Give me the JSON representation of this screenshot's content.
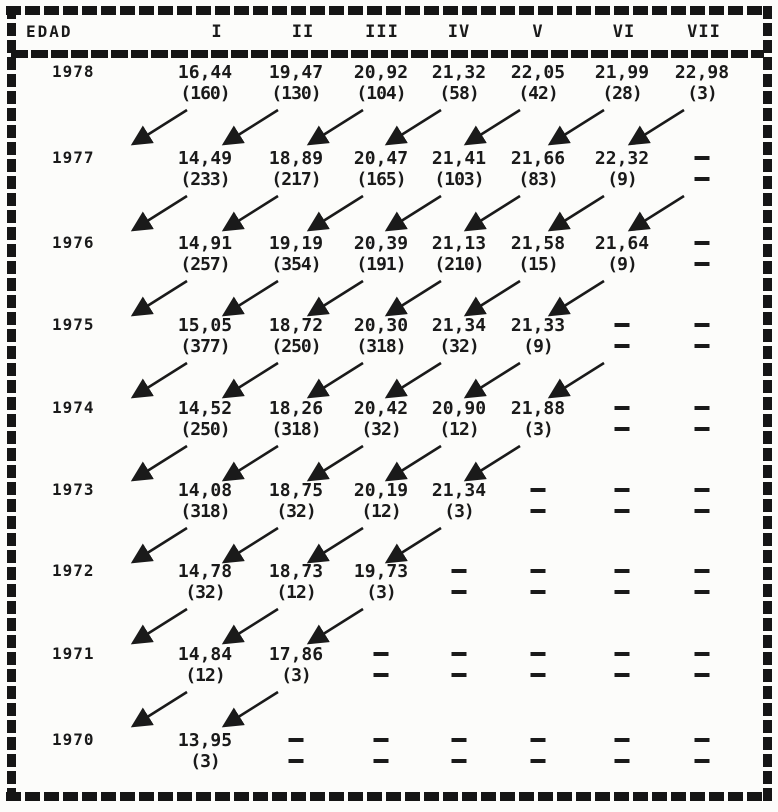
{
  "colors": {
    "ink": "#1a1a1a",
    "paper": "#fcfcfa"
  },
  "table": {
    "corner_label": "EDAD",
    "columns": [
      "I",
      "II",
      "III",
      "IV",
      "V",
      "VI",
      "VII"
    ],
    "empty_marker": "-",
    "rows": [
      {
        "year": "1978",
        "cells": [
          {
            "v": "16,44",
            "n": "(160)"
          },
          {
            "v": "19,47",
            "n": "(130)"
          },
          {
            "v": "20,92",
            "n": "(104)"
          },
          {
            "v": "21,32",
            "n": "(58)"
          },
          {
            "v": "22,05",
            "n": "(42)"
          },
          {
            "v": "21,99",
            "n": "(28)"
          },
          {
            "v": "22,98",
            "n": "(3)"
          }
        ]
      },
      {
        "year": "1977",
        "cells": [
          {
            "v": "14,49",
            "n": "(233)"
          },
          {
            "v": "18,89",
            "n": "(217)"
          },
          {
            "v": "20,47",
            "n": "(165)"
          },
          {
            "v": "21,41",
            "n": "(103)"
          },
          {
            "v": "21,66",
            "n": "(83)"
          },
          {
            "v": "22,32",
            "n": "(9)"
          },
          {
            "v": "-",
            "n": "-"
          }
        ]
      },
      {
        "year": "1976",
        "cells": [
          {
            "v": "14,91",
            "n": "(257)"
          },
          {
            "v": "19,19",
            "n": "(354)"
          },
          {
            "v": "20,39",
            "n": "(191)"
          },
          {
            "v": "21,13",
            "n": "(210)"
          },
          {
            "v": "21,58",
            "n": "(15)"
          },
          {
            "v": "21,64",
            "n": "(9)"
          },
          {
            "v": "-",
            "n": "-"
          }
        ]
      },
      {
        "year": "1975",
        "cells": [
          {
            "v": "15,05",
            "n": "(377)"
          },
          {
            "v": "18,72",
            "n": "(250)"
          },
          {
            "v": "20,30",
            "n": "(318)"
          },
          {
            "v": "21,34",
            "n": "(32)"
          },
          {
            "v": "21,33",
            "n": "(9)"
          },
          {
            "v": "-",
            "n": "-"
          },
          {
            "v": "-",
            "n": "-"
          }
        ]
      },
      {
        "year": "1974",
        "cells": [
          {
            "v": "14,52",
            "n": "(250)"
          },
          {
            "v": "18,26",
            "n": "(318)"
          },
          {
            "v": "20,42",
            "n": "(32)"
          },
          {
            "v": "20,90",
            "n": "(12)"
          },
          {
            "v": "21,88",
            "n": "(3)"
          },
          {
            "v": "-",
            "n": "-"
          },
          {
            "v": "-",
            "n": "-"
          }
        ]
      },
      {
        "year": "1973",
        "cells": [
          {
            "v": "14,08",
            "n": "(318)"
          },
          {
            "v": "18,75",
            "n": "(32)"
          },
          {
            "v": "20,19",
            "n": "(12)"
          },
          {
            "v": "21,34",
            "n": "(3)"
          },
          {
            "v": "-",
            "n": "-"
          },
          {
            "v": "-",
            "n": "-"
          },
          {
            "v": "-",
            "n": "-"
          }
        ]
      },
      {
        "year": "1972",
        "cells": [
          {
            "v": "14,78",
            "n": "(32)"
          },
          {
            "v": "18,73",
            "n": "(12)"
          },
          {
            "v": "19,73",
            "n": "(3)"
          },
          {
            "v": "-",
            "n": "-"
          },
          {
            "v": "-",
            "n": "-"
          },
          {
            "v": "-",
            "n": "-"
          },
          {
            "v": "-",
            "n": "-"
          }
        ]
      },
      {
        "year": "1971",
        "cells": [
          {
            "v": "14,84",
            "n": "(12)"
          },
          {
            "v": "17,86",
            "n": "(3)"
          },
          {
            "v": "-",
            "n": "-"
          },
          {
            "v": "-",
            "n": "-"
          },
          {
            "v": "-",
            "n": "-"
          },
          {
            "v": "-",
            "n": "-"
          },
          {
            "v": "-",
            "n": "-"
          }
        ]
      },
      {
        "year": "1970",
        "cells": [
          {
            "v": "13,95",
            "n": "(3)"
          },
          {
            "v": "-",
            "n": "-"
          },
          {
            "v": "-",
            "n": "-"
          },
          {
            "v": "-",
            "n": "-"
          },
          {
            "v": "-",
            "n": "-"
          },
          {
            "v": "-",
            "n": "-"
          },
          {
            "v": "-",
            "n": "-"
          }
        ]
      }
    ]
  },
  "arrows": [
    {
      "from_year": "1978",
      "to_year": "1977",
      "slots": [
        1,
        2,
        3,
        4,
        5,
        6,
        7
      ]
    },
    {
      "from_year": "1977",
      "to_year": "1976",
      "slots": [
        1,
        2,
        3,
        4,
        5,
        6,
        7
      ]
    },
    {
      "from_year": "1976",
      "to_year": "1975",
      "slots": [
        1,
        2,
        3,
        4,
        5,
        6
      ]
    },
    {
      "from_year": "1975",
      "to_year": "1974",
      "slots": [
        1,
        2,
        3,
        4,
        5,
        6
      ]
    },
    {
      "from_year": "1974",
      "to_year": "1973",
      "slots": [
        1,
        2,
        3,
        4,
        5
      ]
    },
    {
      "from_year": "1973",
      "to_year": "1972",
      "slots": [
        1,
        2,
        3,
        4
      ]
    },
    {
      "from_year": "1972",
      "to_year": "1971",
      "slots": [
        1,
        2,
        3
      ]
    },
    {
      "from_year": "1971",
      "to_year": "1970",
      "slots": [
        1,
        2
      ]
    }
  ]
}
